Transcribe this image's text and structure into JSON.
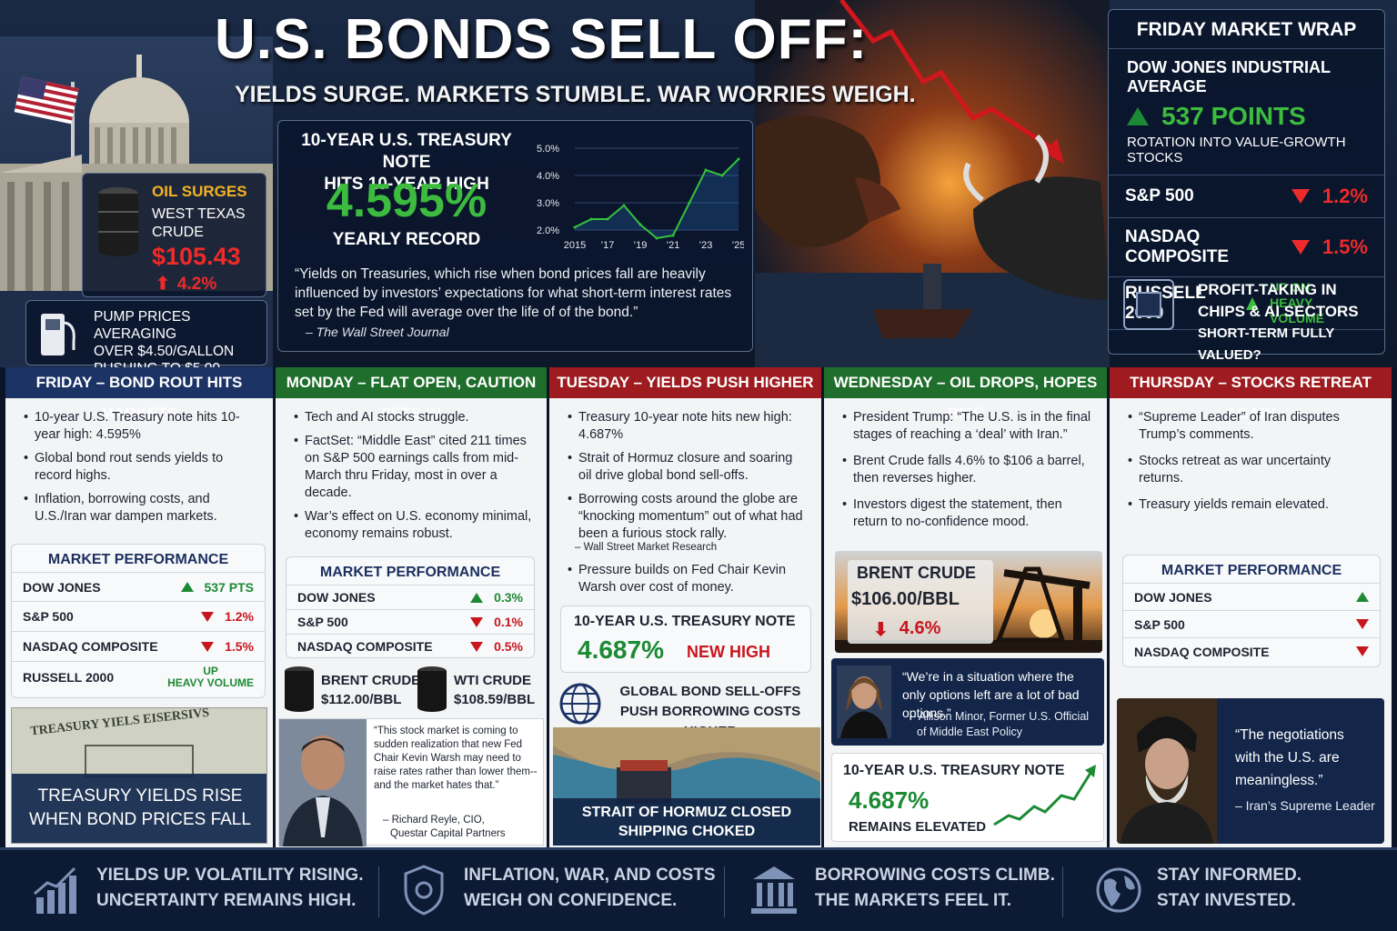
{
  "header": {
    "title": "U.S. BONDS SELL OFF:",
    "subtitle": "YIELDS SURGE. MARKETS STUMBLE. WAR WORRIES WEIGH."
  },
  "oil": {
    "label": "OIL SURGES",
    "line1": "WEST TEXAS",
    "line2": "CRUDE",
    "price": "$105.43",
    "change": "4.2%"
  },
  "pump": {
    "line1": "PUMP PRICES AVERAGING",
    "line2": "OVER $4.50/GALLON",
    "line3": "PUSHING TO $5.00"
  },
  "treasury": {
    "h1": "10-YEAR U.S. TREASURY NOTE",
    "h2": "HITS 10-YEAR HIGH",
    "value": "4.595%",
    "caption": "YEARLY RECORD",
    "quote": "“Yields on Treasuries, which rise when bond prices fall are heavily influenced by investors’ expectations for what short-term interest rates set by the Fed will average over the life of of  the bond.”",
    "source": "– The Wall Street Journal",
    "y_ticks": [
      "5.0%",
      "4.0%",
      "3.0%",
      "2.0%"
    ],
    "x_ticks": [
      "2015",
      "’17",
      "’19",
      "’21",
      "’23",
      "’25"
    ]
  },
  "chart_data": {
    "type": "line",
    "x": [
      2015,
      2016,
      2017,
      2018,
      2019,
      2020,
      2021,
      2022,
      2023,
      2024,
      2025
    ],
    "values": [
      2.1,
      2.4,
      2.4,
      2.9,
      2.2,
      1.7,
      1.8,
      3.0,
      4.2,
      4.0,
      4.6
    ],
    "ylim": [
      2.0,
      5.0
    ],
    "y_tick_labels": [
      "5.0%",
      "4.0%",
      "3.0%",
      "2.0%"
    ],
    "x_tick_labels": [
      "2015",
      "’17",
      "’19",
      "’21",
      "’23",
      "’25"
    ],
    "title": "",
    "xlabel": "",
    "ylabel": ""
  },
  "wrap": {
    "title": "FRIDAY MARKET WRAP",
    "dow_label": "DOW JONES INDUSTRIAL AVERAGE",
    "dow_value": "537 POINTS",
    "rotation": "ROTATION INTO VALUE-GROWTH STOCKS",
    "sp_label": "S&P 500",
    "sp_value": "1.2%",
    "nq_label": "NASDAQ COMPOSITE",
    "nq_value": "1.5%",
    "rut_label": "RUSSELL 2000",
    "rut_v1": "UP ON",
    "rut_v2": "HEAVY VOLUME",
    "chip1": "PROFIT-TAKING IN",
    "chip2": "CHIPS & AI SECTORS",
    "chip3": "SHORT-TERM FULLY VALUED?"
  },
  "friday": {
    "head": "FRIDAY – BOND ROUT HITS MARKETS",
    "bullets": [
      "10-year U.S. Treasury note hits 10-year high: 4.595%",
      "Global bond rout sends yields to record highs.",
      "Inflation, borrowing costs, and U.S./Iran war dampen markets."
    ],
    "mp_title": "MARKET PERFORMANCE",
    "rows": [
      {
        "name": "DOW JONES",
        "val": "537 PTS"
      },
      {
        "name": "S&P 500",
        "val": "1.2%"
      },
      {
        "name": "NASDAQ COMPOSITE",
        "val": "1.5%"
      },
      {
        "name": "RUSSELL 2000",
        "val": "UP",
        "val2": "HEAVY VOLUME"
      }
    ],
    "cert_text": "TREASURY YIELS EISERSIVS",
    "banner1": "TREASURY YIELDS RISE",
    "banner2": "WHEN BOND PRICES FALL"
  },
  "monday": {
    "head": "MONDAY – FLAT OPEN, CAUTION SETS IN",
    "bullets": [
      "Tech and AI stocks struggle.",
      "FactSet: “Middle East” cited 211 times on S&P 500 earnings calls from mid-March thru Friday, most in over a decade.",
      "War’s effect on U.S. economy minimal, economy remains robust."
    ],
    "mp_title": "MARKET PERFORMANCE",
    "rows": [
      {
        "name": "DOW JONES",
        "val": "0.3%"
      },
      {
        "name": "S&P 500",
        "val": "0.1%"
      },
      {
        "name": "NASDAQ COMPOSITE",
        "val": "0.5%"
      }
    ],
    "brent_l": "BRENT CRUDE",
    "brent_v": "$112.00/BBL",
    "wti_l": "WTI CRUDE",
    "wti_v": "$108.59/BBL",
    "quote": "“This stock market is coming to sudden realization that new Fed Chair Kevin Warsh may need to raise rates rather than lower them--and the market hates that.”",
    "src1": "– Richard Reyle, CIO,",
    "src2": "Questar Capital Partners"
  },
  "tuesday": {
    "head": "TUESDAY – YIELDS PUSH HIGHER",
    "bullets": [
      "Treasury 10-year note hits new high: 4.687%",
      "Strait of Hormuz closure and soaring oil drive global bond sell-offs.",
      "Borrowing costs around the globe are “knocking momentum” out of what had been a furious stock rally."
    ],
    "attr": "– Wall Street Market Research",
    "bullet4": "Pressure builds on Fed Chair Kevin Warsh over cost of money.",
    "note_l": "10-YEAR U.S. TREASURY NOTE",
    "note_v": "4.687%",
    "note_t": "NEW HIGH",
    "globe1": "GLOBAL BOND SELL-OFFS",
    "globe2": "PUSH BORROWING COSTS HIGHER",
    "strait1": "STRAIT OF HORMUZ CLOSED",
    "strait2": "SHIPPING CHOKED"
  },
  "wednesday": {
    "head": "WEDNESDAY – OIL DROPS, HOPES RISE",
    "bullets": [
      "President Trump: “The U.S. is in the final stages of reaching a ‘deal’ with Iran.”",
      "Brent Crude falls 4.6% to $106 a barrel, then reverses higher.",
      "Investors digest the statement, then return to no-confidence mood."
    ],
    "brent_l": "BRENT CRUDE",
    "brent_v": "$106.00/BBL",
    "brent_c": "4.6%",
    "quote": "“We’re in a situation where the only options left are a lot of bad options.”",
    "src1": "– Allison Minor, Former U.S. Official",
    "src2": "of Middle East Policy",
    "note_l": "10-YEAR U.S. TREASURY NOTE",
    "note_v": "4.687%",
    "note_t": "REMAINS ELEVATED"
  },
  "thursday": {
    "head": "THURSDAY – STOCKS RETREAT AGAIN",
    "bullets": [
      "“Supreme Leader” of Iran disputes Trump’s comments.",
      "Stocks retreat as war uncertainty returns.",
      "Treasury yields remain elevated."
    ],
    "mp_title": "MARKET PERFORMANCE",
    "rows": [
      {
        "name": "DOW JONES"
      },
      {
        "name": "S&P 500"
      },
      {
        "name": "NASDAQ COMPOSITE"
      }
    ],
    "quote": "“The negotiations with the U.S. are meaningless.”",
    "src": "– Iran’s Supreme Leader"
  },
  "footer": [
    {
      "l1": "YIELDS UP. VOLATILITY RISING.",
      "l2": "UNCERTAINTY REMAINS HIGH."
    },
    {
      "l1": "INFLATION, WAR, AND COSTS",
      "l2": "WEIGH ON CONFIDENCE."
    },
    {
      "l1": "BORROWING COSTS CLIMB.",
      "l2": "THE MARKETS FEEL IT."
    },
    {
      "l1": "STAY INFORMED.",
      "l2": "STAY INVESTED."
    }
  ],
  "colors": {
    "friday": "#1c3366",
    "monday": "#1f6e2c",
    "tuesday": "#9e1b1f",
    "wednesday": "#1f6e2c",
    "thursday": "#9e1b1f",
    "up": "#1c8a34",
    "down": "#c8161d"
  }
}
